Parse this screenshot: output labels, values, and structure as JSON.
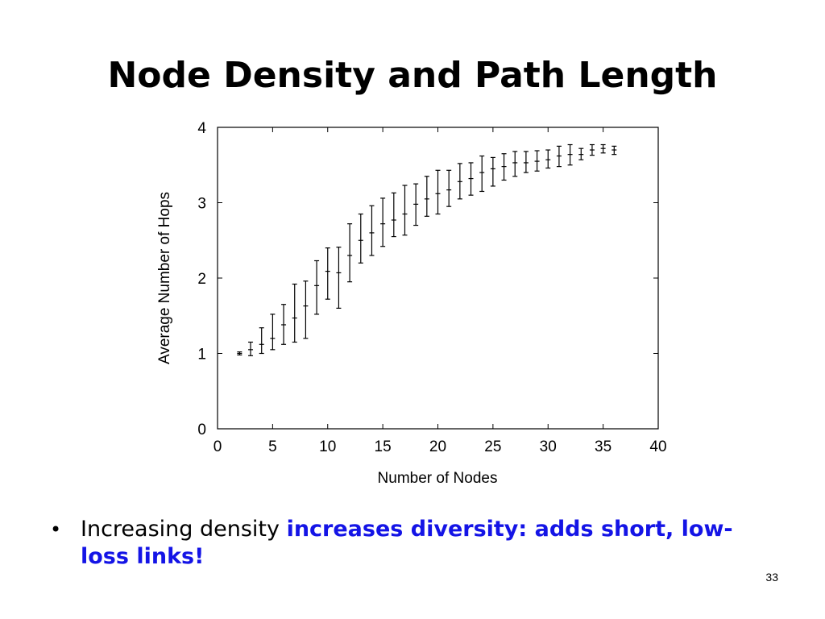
{
  "slide": {
    "title": "Node Density and Path Length",
    "bullet": {
      "symbol": "•",
      "plain": "Increasing density ",
      "emphasis": "increases diversity: adds short, low-loss links!",
      "emphasis_color": "#1414e6"
    },
    "page_number": "33"
  },
  "chart_data": {
    "type": "scatter",
    "subtype": "errorbar",
    "xlabel": "Number of Nodes",
    "ylabel": "Average Number of Hops",
    "xlim": [
      0,
      40
    ],
    "ylim": [
      0,
      4
    ],
    "xticks": [
      "0",
      "5",
      "10",
      "15",
      "20",
      "25",
      "30",
      "35",
      "40"
    ],
    "yticks": [
      "0",
      "1",
      "2",
      "3",
      "4"
    ],
    "grid": false,
    "series": [
      {
        "points": [
          {
            "x": 2,
            "y": 1.0,
            "low": 0.98,
            "high": 1.02
          },
          {
            "x": 3,
            "y": 1.05,
            "low": 0.97,
            "high": 1.15
          },
          {
            "x": 4,
            "y": 1.12,
            "low": 1.0,
            "high": 1.34
          },
          {
            "x": 5,
            "y": 1.2,
            "low": 1.05,
            "high": 1.52
          },
          {
            "x": 6,
            "y": 1.38,
            "low": 1.12,
            "high": 1.65
          },
          {
            "x": 7,
            "y": 1.47,
            "low": 1.15,
            "high": 1.92
          },
          {
            "x": 8,
            "y": 1.63,
            "low": 1.2,
            "high": 1.96
          },
          {
            "x": 9,
            "y": 1.9,
            "low": 1.52,
            "high": 2.23
          },
          {
            "x": 10,
            "y": 2.09,
            "low": 1.72,
            "high": 2.4
          },
          {
            "x": 11,
            "y": 2.07,
            "low": 1.6,
            "high": 2.41
          },
          {
            "x": 12,
            "y": 2.3,
            "low": 1.95,
            "high": 2.72
          },
          {
            "x": 13,
            "y": 2.5,
            "low": 2.2,
            "high": 2.85
          },
          {
            "x": 14,
            "y": 2.6,
            "low": 2.3,
            "high": 2.96
          },
          {
            "x": 15,
            "y": 2.72,
            "low": 2.42,
            "high": 3.06
          },
          {
            "x": 16,
            "y": 2.77,
            "low": 2.55,
            "high": 3.13
          },
          {
            "x": 17,
            "y": 2.85,
            "low": 2.57,
            "high": 3.23
          },
          {
            "x": 18,
            "y": 2.98,
            "low": 2.7,
            "high": 3.25
          },
          {
            "x": 19,
            "y": 3.05,
            "low": 2.82,
            "high": 3.35
          },
          {
            "x": 20,
            "y": 3.12,
            "low": 2.85,
            "high": 3.43
          },
          {
            "x": 21,
            "y": 3.17,
            "low": 2.95,
            "high": 3.43
          },
          {
            "x": 22,
            "y": 3.28,
            "low": 3.05,
            "high": 3.52
          },
          {
            "x": 23,
            "y": 3.32,
            "low": 3.1,
            "high": 3.53
          },
          {
            "x": 24,
            "y": 3.4,
            "low": 3.15,
            "high": 3.62
          },
          {
            "x": 25,
            "y": 3.45,
            "low": 3.22,
            "high": 3.6
          },
          {
            "x": 26,
            "y": 3.48,
            "low": 3.3,
            "high": 3.65
          },
          {
            "x": 27,
            "y": 3.53,
            "low": 3.35,
            "high": 3.68
          },
          {
            "x": 28,
            "y": 3.53,
            "low": 3.4,
            "high": 3.68
          },
          {
            "x": 29,
            "y": 3.55,
            "low": 3.42,
            "high": 3.69
          },
          {
            "x": 30,
            "y": 3.57,
            "low": 3.46,
            "high": 3.7
          },
          {
            "x": 31,
            "y": 3.62,
            "low": 3.48,
            "high": 3.75
          },
          {
            "x": 32,
            "y": 3.64,
            "low": 3.5,
            "high": 3.77
          },
          {
            "x": 33,
            "y": 3.64,
            "low": 3.57,
            "high": 3.72
          },
          {
            "x": 34,
            "y": 3.7,
            "low": 3.63,
            "high": 3.77
          },
          {
            "x": 35,
            "y": 3.72,
            "low": 3.66,
            "high": 3.77
          },
          {
            "x": 36,
            "y": 3.7,
            "low": 3.64,
            "high": 3.75
          }
        ]
      }
    ]
  }
}
